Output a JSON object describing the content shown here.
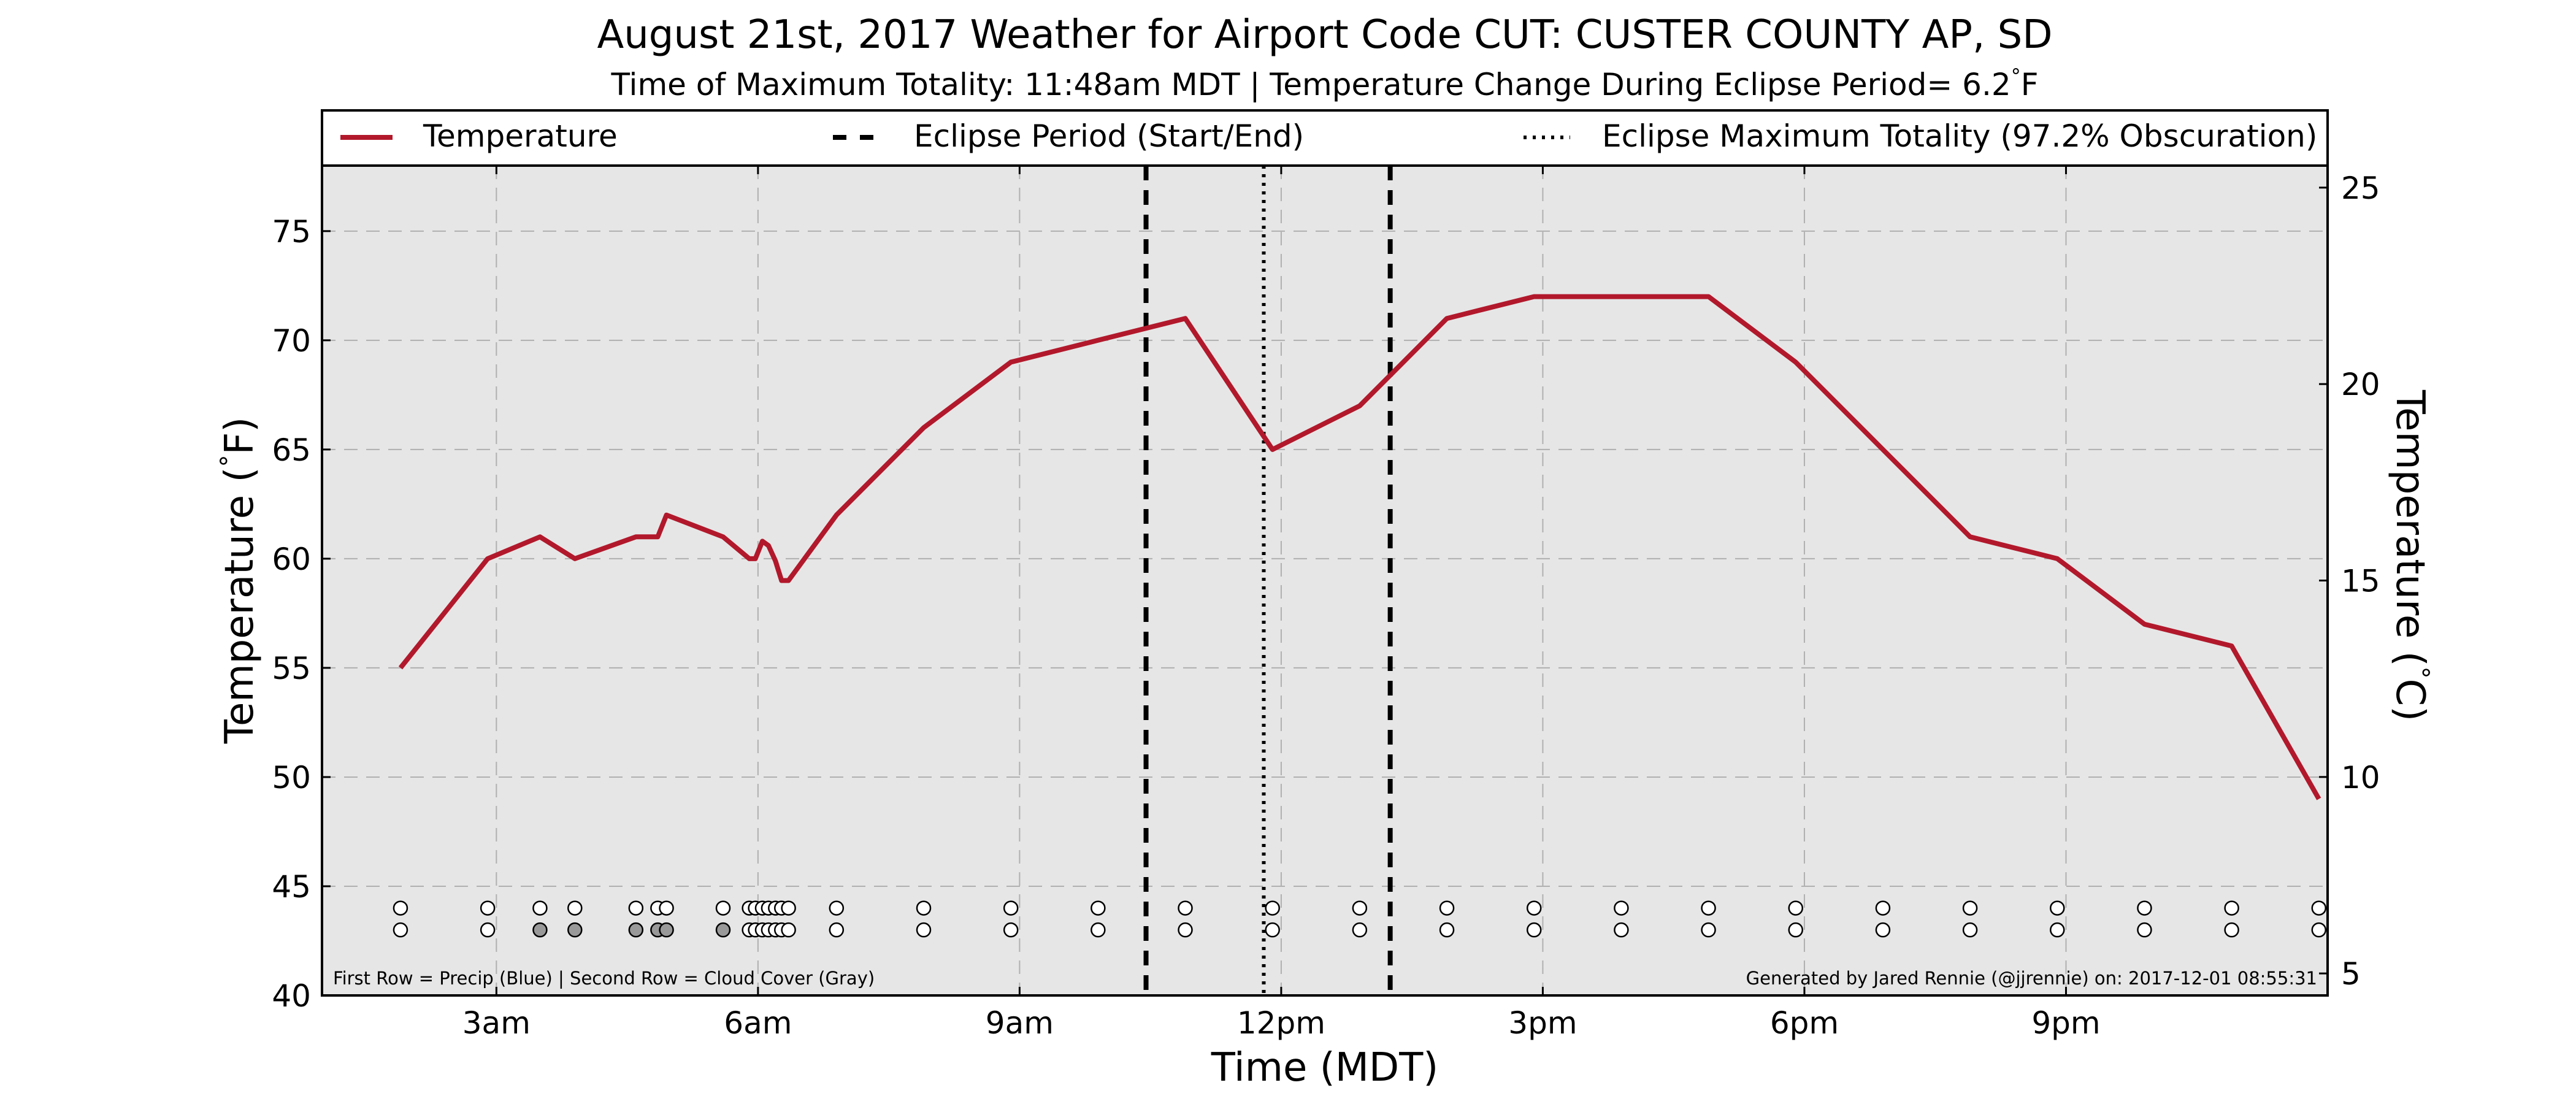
{
  "chart_data": {
    "type": "line",
    "title": "August 21st, 2017 Weather for Airport Code CUT: CUSTER COUNTY AP, SD",
    "subtitle": "Time of Maximum Totality: 11:48am MDT | Temperature Change During Eclipse Period= 6.2",
    "subtitle_unit": "F",
    "xlabel": "Time (MDT)",
    "ylabel": "Temperature (",
    "ylabel_unit": "F)",
    "y2label": "Temperature (",
    "y2label_unit": "C)",
    "degree_symbol": "°",
    "xlim": [
      1.0,
      24.0
    ],
    "ylim": [
      40,
      78
    ],
    "y2lim": [
      4.44,
      25.56
    ],
    "x_ticks": [
      {
        "value": 3,
        "label": "3am"
      },
      {
        "value": 6,
        "label": "6am"
      },
      {
        "value": 9,
        "label": "9am"
      },
      {
        "value": 12,
        "label": "12pm"
      },
      {
        "value": 15,
        "label": "3pm"
      },
      {
        "value": 18,
        "label": "6pm"
      },
      {
        "value": 21,
        "label": "9pm"
      }
    ],
    "y_ticks": [
      40,
      45,
      50,
      55,
      60,
      65,
      70,
      75
    ],
    "y2_ticks": [
      5,
      10,
      15,
      20,
      25
    ],
    "grid": true,
    "legend": {
      "placement": "top",
      "entries": [
        {
          "label": "Temperature",
          "style": "solid"
        },
        {
          "label": "Eclipse Period (Start/End)",
          "style": "dashed"
        },
        {
          "label": "Eclipse Maximum Totality (97.2% Obscuration)",
          "style": "dotted"
        }
      ]
    },
    "series": [
      {
        "name": "Temperature",
        "color": "#b2182b",
        "points": [
          [
            1.9,
            55
          ],
          [
            2.9,
            60
          ],
          [
            3.5,
            61
          ],
          [
            3.9,
            60
          ],
          [
            4.6,
            61
          ],
          [
            4.85,
            61
          ],
          [
            4.95,
            62
          ],
          [
            5.6,
            61
          ],
          [
            5.9,
            60
          ],
          [
            5.97,
            60
          ],
          [
            6.05,
            60.8
          ],
          [
            6.12,
            60.6
          ],
          [
            6.2,
            59.9
          ],
          [
            6.27,
            59
          ],
          [
            6.35,
            59
          ],
          [
            6.9,
            62
          ],
          [
            7.9,
            66
          ],
          [
            8.9,
            69
          ],
          [
            9.9,
            70
          ],
          [
            10.9,
            71
          ],
          [
            11.9,
            65
          ],
          [
            12.9,
            67
          ],
          [
            13.9,
            71
          ],
          [
            14.9,
            72
          ],
          [
            15.9,
            72
          ],
          [
            16.9,
            72
          ],
          [
            17.9,
            69
          ],
          [
            18.9,
            65
          ],
          [
            19.9,
            61
          ],
          [
            20.9,
            60
          ],
          [
            21.9,
            57
          ],
          [
            22.9,
            56
          ],
          [
            23.9,
            49
          ]
        ]
      }
    ],
    "eclipse_lines": [
      {
        "x": 10.45,
        "style": "dashed",
        "name": "Eclipse start"
      },
      {
        "x": 11.8,
        "style": "dotted",
        "name": "Eclipse maximum totality"
      },
      {
        "x": 13.25,
        "style": "dashed",
        "name": "Eclipse end"
      }
    ],
    "obs_rows": {
      "row1_y": 44,
      "row2_y": 43,
      "precip_color": "#1f77b4",
      "cloud_gray": "#999999",
      "markers": [
        {
          "x": 1.9,
          "precip": false,
          "cloud": false
        },
        {
          "x": 2.9,
          "precip": false,
          "cloud": false
        },
        {
          "x": 3.5,
          "precip": false,
          "cloud": true
        },
        {
          "x": 3.9,
          "precip": false,
          "cloud": true
        },
        {
          "x": 4.6,
          "precip": false,
          "cloud": true
        },
        {
          "x": 4.85,
          "precip": false,
          "cloud": true
        },
        {
          "x": 4.95,
          "precip": false,
          "cloud": true
        },
        {
          "x": 5.6,
          "precip": false,
          "cloud": true
        },
        {
          "x": 5.9,
          "precip": false,
          "cloud": false
        },
        {
          "x": 5.97,
          "precip": false,
          "cloud": false
        },
        {
          "x": 6.05,
          "precip": false,
          "cloud": false
        },
        {
          "x": 6.12,
          "precip": false,
          "cloud": false
        },
        {
          "x": 6.2,
          "precip": false,
          "cloud": false
        },
        {
          "x": 6.27,
          "precip": false,
          "cloud": false
        },
        {
          "x": 6.35,
          "precip": false,
          "cloud": false
        },
        {
          "x": 6.9,
          "precip": false,
          "cloud": false
        },
        {
          "x": 7.9,
          "precip": false,
          "cloud": false
        },
        {
          "x": 8.9,
          "precip": false,
          "cloud": false
        },
        {
          "x": 9.9,
          "precip": false,
          "cloud": false
        },
        {
          "x": 10.9,
          "precip": false,
          "cloud": false
        },
        {
          "x": 11.9,
          "precip": false,
          "cloud": false
        },
        {
          "x": 12.9,
          "precip": false,
          "cloud": false
        },
        {
          "x": 13.9,
          "precip": false,
          "cloud": false
        },
        {
          "x": 14.9,
          "precip": false,
          "cloud": false
        },
        {
          "x": 15.9,
          "precip": false,
          "cloud": false
        },
        {
          "x": 16.9,
          "precip": false,
          "cloud": false
        },
        {
          "x": 17.9,
          "precip": false,
          "cloud": false
        },
        {
          "x": 18.9,
          "precip": false,
          "cloud": false
        },
        {
          "x": 19.9,
          "precip": false,
          "cloud": false
        },
        {
          "x": 20.9,
          "precip": false,
          "cloud": false
        },
        {
          "x": 21.9,
          "precip": false,
          "cloud": false
        },
        {
          "x": 22.9,
          "precip": false,
          "cloud": false
        },
        {
          "x": 23.9,
          "precip": false,
          "cloud": false
        }
      ]
    },
    "footnote_left": "First Row = Precip (Blue) | Second Row = Cloud Cover (Gray)",
    "footnote_right": "Generated by Jared Rennie (@jjrennie) on: 2017-12-01 08:55:31",
    "colors": {
      "plot_background": "#e6e6e6",
      "temperature_line": "#b2182b",
      "grid": "#b0b0b0"
    }
  }
}
